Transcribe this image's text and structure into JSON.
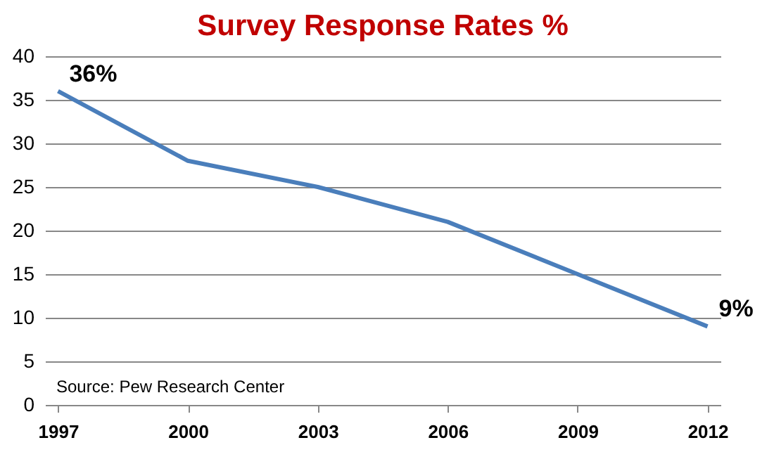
{
  "chart_data": {
    "type": "line",
    "title": "Survey Response Rates %",
    "categories": [
      "1997",
      "2000",
      "2003",
      "2006",
      "2009",
      "2012"
    ],
    "series": [
      {
        "color": "#4a7ebb",
        "values": [
          36,
          28,
          25,
          21,
          15,
          9
        ],
        "value_labels": [
          "36%",
          null,
          null,
          null,
          null,
          "9%"
        ]
      }
    ],
    "ylim": [
      0,
      40
    ],
    "yticks": [
      0,
      5,
      10,
      15,
      20,
      25,
      30,
      35,
      40
    ],
    "grid": "y",
    "marker": "none",
    "line_style": "solid",
    "annotations": [
      "Source: Pew Research Center"
    ]
  }
}
